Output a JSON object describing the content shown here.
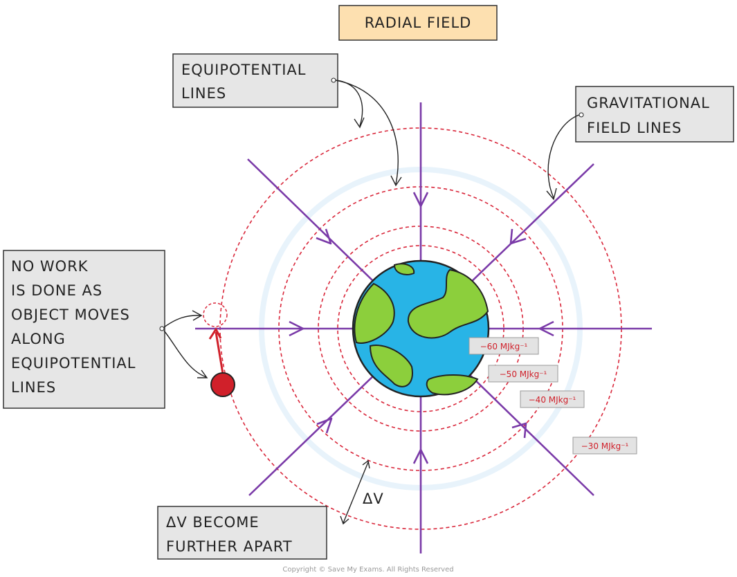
{
  "title": "RADIAL FIELD",
  "labels": {
    "equipotential": [
      "EQUIPOTENTIAL",
      "LINES"
    ],
    "field_lines": [
      "GRAVITATIONAL",
      "FIELD LINES"
    ],
    "no_work": [
      "NO WORK",
      "IS DONE AS",
      "OBJECT MOVES",
      "ALONG",
      "EQUIPOTENTIAL",
      "LINES"
    ],
    "delta_v_note": [
      "ΔV BECOME",
      "FURTHER APART"
    ],
    "delta_v": "ΔV"
  },
  "potentials": [
    "−60 MJkg⁻¹",
    "−50 MJkg⁻¹",
    "−40 MJkg⁻¹",
    "−30 MJkg⁻¹"
  ],
  "copyright": "Copyright © Save My Exams. All Rights Reserved"
}
